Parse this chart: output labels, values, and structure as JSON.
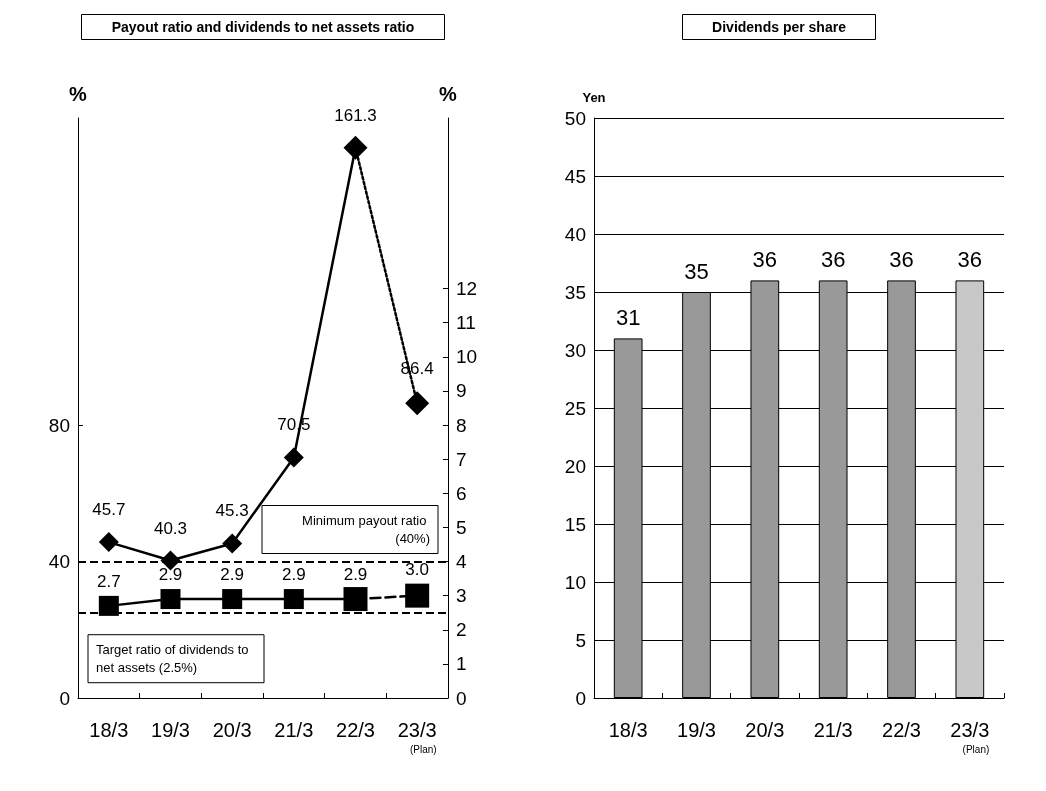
{
  "chart_data": [
    {
      "type": "line",
      "title": "Payout ratio and dividends to net assets ratio",
      "ylabel": "%",
      "y2label": "%",
      "categories": [
        "18/3",
        "19/3",
        "20/3",
        "21/3",
        "22/3",
        "23/3\n(Plan)"
      ],
      "ylim": [
        0,
        170
      ],
      "yticks": [
        0,
        40,
        80
      ],
      "y2lim": [
        0,
        17
      ],
      "y2ticks": [
        0,
        1,
        2,
        3,
        4,
        5,
        6,
        7,
        8,
        9,
        10,
        11,
        12
      ],
      "grid": false,
      "series": [
        {
          "color": "#000000",
          "marker": "diamond",
          "line_style": "solid",
          "values": [
            45.7,
            40.3,
            45.3,
            70.5,
            161.3,
            null
          ],
          "value_labels": [
            "45.7",
            "40.3",
            "45.3",
            "70.5",
            "161.3",
            null
          ]
        },
        {
          "color": "#000000",
          "marker": "diamond",
          "line_style": "dotted",
          "values": [
            null,
            null,
            null,
            null,
            161.3,
            86.4
          ],
          "value_labels": [
            null,
            null,
            null,
            null,
            null,
            "86.4"
          ]
        },
        {
          "axis": "y2",
          "color": "#000000",
          "marker": "square",
          "line_style": "solid",
          "values": [
            2.7,
            2.9,
            2.9,
            2.9,
            2.9,
            null
          ],
          "value_labels": [
            "2.7",
            "2.9",
            "2.9",
            "2.9",
            "2.9",
            null
          ]
        },
        {
          "axis": "y2",
          "color": "#000000",
          "marker": "square",
          "line_style": "dashed",
          "values": [
            null,
            null,
            null,
            null,
            2.9,
            3.0
          ],
          "value_labels": [
            null,
            null,
            null,
            null,
            null,
            "3.0"
          ]
        }
      ],
      "ref_lines": [
        {
          "axis": "y",
          "value": 40,
          "label": "Minimum payout ratio (40%)",
          "line_style": "dashed",
          "color": "#000000"
        },
        {
          "axis": "y2",
          "value": 2.5,
          "label": "Target ratio of dividends to net assets (2.5%)",
          "line_style": "dashed",
          "color": "#000000"
        }
      ]
    },
    {
      "type": "bar",
      "title": "Dividends per share",
      "ylabel": "Yen",
      "categories": [
        "18/3",
        "19/3",
        "20/3",
        "21/3",
        "22/3",
        "23/3\n(Plan)"
      ],
      "values": [
        31,
        35,
        36,
        36,
        36,
        36
      ],
      "colors": [
        "#999999",
        "#999999",
        "#999999",
        "#999999",
        "#999999",
        "#c8c8c8"
      ],
      "ylim": [
        0,
        50
      ],
      "yticks": [
        0,
        5,
        10,
        15,
        20,
        25,
        30,
        35,
        40,
        45,
        50
      ],
      "grid": "y",
      "data_labels": true
    }
  ]
}
